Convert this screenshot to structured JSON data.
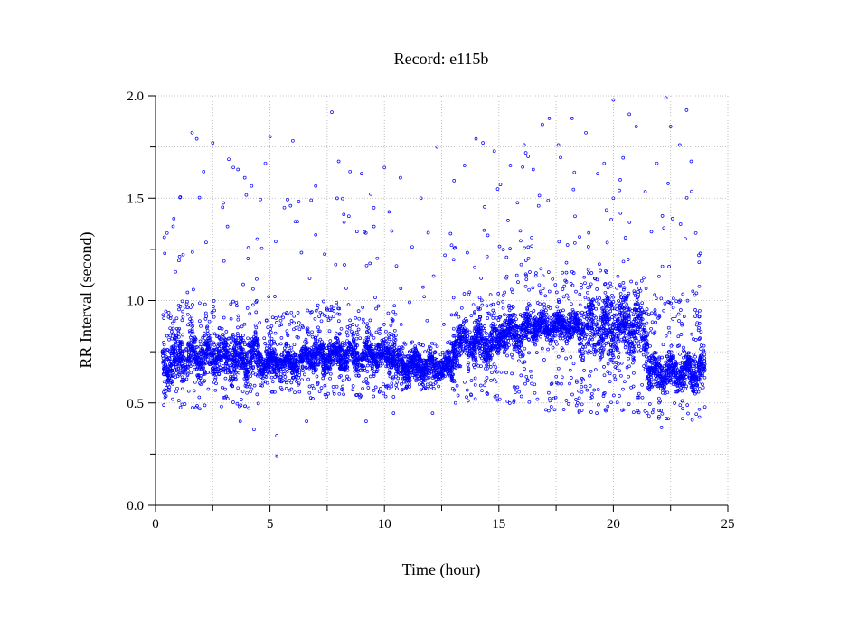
{
  "chart_data": {
    "type": "scatter",
    "title": "Record:  e115b",
    "xlabel": "Time (hour)",
    "ylabel": "RR Interval (second)",
    "xlim": [
      0,
      25
    ],
    "ylim": [
      0.0,
      2.0
    ],
    "xticks": [
      0,
      5,
      10,
      15,
      20,
      25
    ],
    "xtick_labels": [
      "0",
      "5",
      "10",
      "15",
      "20",
      "25"
    ],
    "yticks": [
      0.0,
      0.5,
      1.0,
      1.5,
      2.0
    ],
    "ytick_labels": [
      "0.0",
      "0.5",
      "1.0",
      "1.5",
      "2.0"
    ],
    "grid": true,
    "marker_color": "#0000ff",
    "series": [
      {
        "x_range": [
          0.3,
          24.0
        ],
        "segments": [
          {
            "x": [
              0.3,
              1.0
            ],
            "band": [
              0.55,
              0.85
            ],
            "spread": [
              0.48,
              0.95
            ]
          },
          {
            "x": [
              1.0,
              4.5
            ],
            "band": [
              0.6,
              0.85
            ],
            "spread": [
              0.47,
              1.0
            ]
          },
          {
            "x": [
              4.5,
              6.5
            ],
            "band": [
              0.62,
              0.78
            ],
            "spread": [
              0.55,
              0.95
            ]
          },
          {
            "x": [
              6.5,
              10.5
            ],
            "band": [
              0.65,
              0.82
            ],
            "spread": [
              0.52,
              0.98
            ]
          },
          {
            "x": [
              10.5,
              13.0
            ],
            "band": [
              0.6,
              0.75
            ],
            "spread": [
              0.56,
              0.8
            ]
          },
          {
            "x": [
              13.0,
              15.0
            ],
            "band": [
              0.68,
              0.9
            ],
            "spread": [
              0.5,
              1.05
            ]
          },
          {
            "x": [
              15.0,
              16.5
            ],
            "band": [
              0.75,
              0.95
            ],
            "spread": [
              0.48,
              1.27
            ]
          },
          {
            "x": [
              16.5,
              18.5
            ],
            "band": [
              0.8,
              0.95
            ],
            "spread": [
              0.45,
              1.15
            ]
          },
          {
            "x": [
              18.5,
              21.5
            ],
            "band": [
              0.7,
              1.05
            ],
            "spread": [
              0.45,
              1.15
            ]
          },
          {
            "x": [
              21.5,
              24.0
            ],
            "band": [
              0.55,
              0.75
            ],
            "spread": [
              0.4,
              1.05
            ]
          }
        ],
        "outliers": [
          [
            0.5,
            1.33
          ],
          [
            0.8,
            1.4
          ],
          [
            1.6,
            1.82
          ],
          [
            1.8,
            1.79
          ],
          [
            2.1,
            1.63
          ],
          [
            2.5,
            1.77
          ],
          [
            3.2,
            1.69
          ],
          [
            3.4,
            1.65
          ],
          [
            3.6,
            1.64
          ],
          [
            3.9,
            1.6
          ],
          [
            4.2,
            1.56
          ],
          [
            4.8,
            1.67
          ],
          [
            5.0,
            1.8
          ],
          [
            6.0,
            1.78
          ],
          [
            6.8,
            1.49
          ],
          [
            7.0,
            1.56
          ],
          [
            7.7,
            1.92
          ],
          [
            8.0,
            1.68
          ],
          [
            8.5,
            1.63
          ],
          [
            9.0,
            1.62
          ],
          [
            9.4,
            1.52
          ],
          [
            10.0,
            1.65
          ],
          [
            10.7,
            1.6
          ],
          [
            11.6,
            1.5
          ],
          [
            12.3,
            1.75
          ],
          [
            13.5,
            1.66
          ],
          [
            14.0,
            1.79
          ],
          [
            14.3,
            1.77
          ],
          [
            14.8,
            1.73
          ],
          [
            15.5,
            1.66
          ],
          [
            16.1,
            1.76
          ],
          [
            16.5,
            1.64
          ],
          [
            16.9,
            1.86
          ],
          [
            17.2,
            1.89
          ],
          [
            17.6,
            1.76
          ],
          [
            18.2,
            1.89
          ],
          [
            18.8,
            1.82
          ],
          [
            19.6,
            1.67
          ],
          [
            20.0,
            1.98
          ],
          [
            20.3,
            1.59
          ],
          [
            20.7,
            1.91
          ],
          [
            21.0,
            1.85
          ],
          [
            21.9,
            1.67
          ],
          [
            22.3,
            1.99
          ],
          [
            22.5,
            1.85
          ],
          [
            22.9,
            1.76
          ],
          [
            23.2,
            1.93
          ],
          [
            23.4,
            1.68
          ],
          [
            23.6,
            1.33
          ],
          [
            23.8,
            1.23
          ],
          [
            5.3,
            0.34
          ],
          [
            5.3,
            0.24
          ],
          [
            3.7,
            0.41
          ],
          [
            4.3,
            0.37
          ],
          [
            6.6,
            0.41
          ],
          [
            9.2,
            0.41
          ],
          [
            10.4,
            0.45
          ],
          [
            12.1,
            0.45
          ],
          [
            22.1,
            0.38
          ]
        ]
      }
    ]
  }
}
